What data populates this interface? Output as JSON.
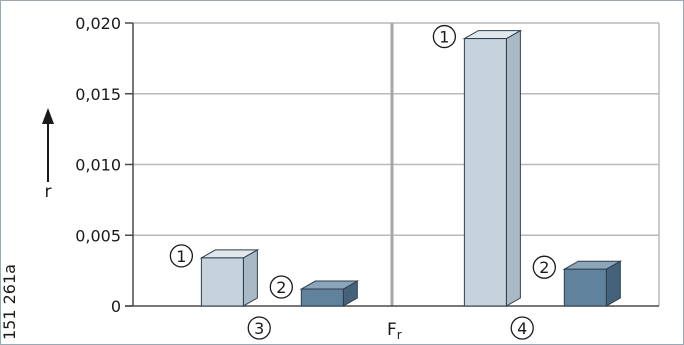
{
  "chart_data": {
    "type": "bar",
    "ylabel": "r",
    "xlabel_main": "F",
    "xlabel_sub": "r",
    "ylim": [
      0,
      0.02
    ],
    "yticks": [
      "0",
      "0,005",
      "0,010",
      "0,015",
      "0,020"
    ],
    "groups": [
      {
        "label": "3",
        "bars": [
          {
            "label": "1",
            "value": 0.0034,
            "color": "light"
          },
          {
            "label": "2",
            "value": 0.0012,
            "color": "dark"
          }
        ]
      },
      {
        "label": "4",
        "bars": [
          {
            "label": "1",
            "value": 0.0189,
            "color": "light"
          },
          {
            "label": "2",
            "value": 0.0026,
            "color": "dark"
          }
        ]
      }
    ],
    "side_code": "151 261a",
    "grid": true
  },
  "colors": {
    "light_front": "#c7d3dc",
    "light_side": "#a9b9c5",
    "light_top": "#e0e8ee",
    "dark_front": "#61829c",
    "dark_side": "#44627a",
    "dark_top": "#8ba6bb",
    "grid": "#b9b9b9",
    "axis": "#4a4a4a"
  }
}
